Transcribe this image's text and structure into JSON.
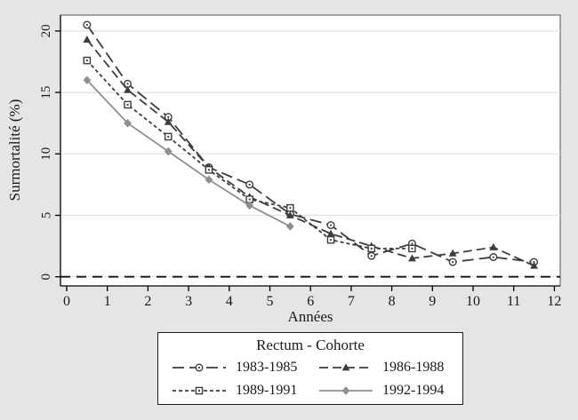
{
  "figure": {
    "background": "#e5e5e5",
    "plot_background": "#ffffff",
    "grid_color": "#e2e2e2",
    "axis_color": "#000000",
    "text_color": "#1a1a1a",
    "dark_series_color": "#3d3d3d",
    "light_series_color": "#8f8f8f"
  },
  "axes": {
    "x_label": "Années",
    "y_label": "Surmortalité (%)"
  },
  "legend": {
    "title": "Rectum - Cohorte"
  },
  "chart_data": {
    "type": "line",
    "title": "Rectum - Cohorte",
    "xlabel": "Années",
    "ylabel": "Surmortalité (%)",
    "xlim": [
      -0.15,
      12.3
    ],
    "ylim": [
      -0.75,
      21.3
    ],
    "grid": "horizontal",
    "legend_position": "below",
    "x_ticks": [
      0,
      1,
      2,
      3,
      4,
      5,
      6,
      7,
      8,
      9,
      10,
      11,
      12
    ],
    "y_ticks": [
      0,
      5,
      10,
      15,
      20
    ],
    "x": [
      0.5,
      1.5,
      2.5,
      3.5,
      4.5,
      5.5,
      6.5,
      7.5,
      8.5,
      9.5,
      10.5,
      11.5
    ],
    "series": [
      {
        "name": "1983-1985",
        "marker": "hollow-circle",
        "line": "long-dash",
        "color": "#3d3d3d",
        "values": [
          20.5,
          15.7,
          13.0,
          8.9,
          7.5,
          5.1,
          4.2,
          1.7,
          2.7,
          1.2,
          1.6,
          1.2
        ]
      },
      {
        "name": "1986-1988",
        "marker": "filled-triangle",
        "line": "long-dash-2",
        "color": "#3d3d3d",
        "values": [
          19.3,
          15.2,
          12.6,
          8.9,
          6.5,
          5.0,
          3.5,
          2.5,
          1.5,
          1.9,
          2.4,
          0.9
        ]
      },
      {
        "name": "1989-1991",
        "marker": "hollow-square",
        "line": "short-dash",
        "color": "#3d3d3d",
        "values": [
          17.6,
          14.0,
          11.4,
          8.7,
          6.3,
          5.6,
          3.0,
          2.3,
          2.3
        ]
      },
      {
        "name": "1992-1994",
        "marker": "filled-diamond",
        "line": "solid",
        "color": "#8f8f8f",
        "values": [
          16.0,
          12.5,
          10.2,
          7.9,
          5.8,
          4.1
        ]
      }
    ],
    "reference_line": {
      "y": 0,
      "style": "dashed",
      "color": "#111111"
    }
  }
}
